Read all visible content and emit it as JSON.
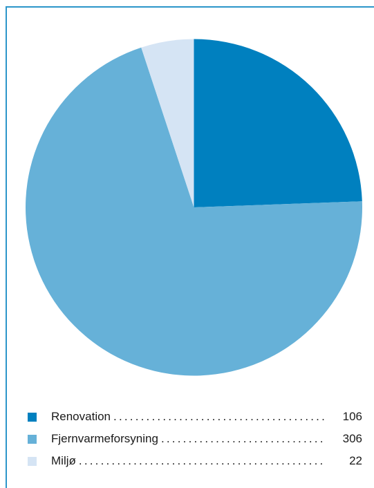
{
  "chart_data": {
    "type": "pie",
    "categories": [
      "Renovation",
      "Fjernvarmeforsyning",
      "Miljø"
    ],
    "values": [
      106,
      306,
      22
    ],
    "colors": [
      "#0080bf",
      "#66b1d8",
      "#d5e4f4"
    ],
    "start": "12 o'clock",
    "direction": "clockwise",
    "legend_placement": "bottom"
  },
  "legend": [
    {
      "label": "Renovation",
      "value": "106",
      "color": "#0080bf"
    },
    {
      "label": "Fjernvarmeforsyning",
      "value": "306",
      "color": "#66b1d8"
    },
    {
      "label": "Miljø",
      "value": "22",
      "color": "#d5e4f4"
    }
  ],
  "frame_color": "#2b95c9"
}
